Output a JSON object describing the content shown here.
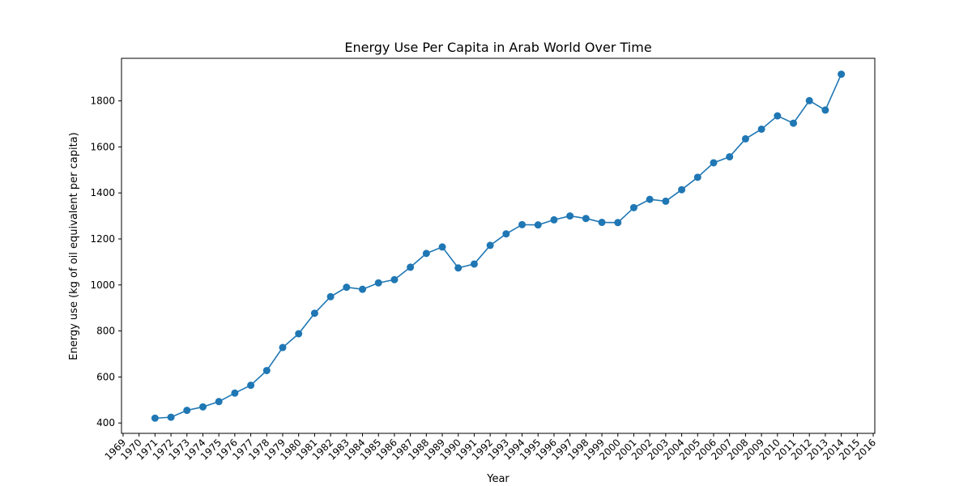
{
  "chart_data": {
    "type": "line",
    "title": "Energy Use Per Capita in Arab World Over Time",
    "xlabel": "Year",
    "ylabel": "Energy use (kg of oil equivalent per capita)",
    "xlim": [
      1968.9,
      2016.1
    ],
    "ylim": [
      355,
      1985
    ],
    "x_ticks": [
      1969,
      1970,
      1971,
      1972,
      1973,
      1974,
      1975,
      1976,
      1977,
      1978,
      1979,
      1980,
      1981,
      1982,
      1983,
      1984,
      1985,
      1986,
      1987,
      1988,
      1989,
      1990,
      1991,
      1992,
      1993,
      1994,
      1995,
      1996,
      1997,
      1998,
      1999,
      2000,
      2001,
      2002,
      2003,
      2004,
      2005,
      2006,
      2007,
      2008,
      2009,
      2010,
      2011,
      2012,
      2013,
      2014,
      2015,
      2016
    ],
    "y_ticks": [
      400,
      600,
      800,
      1000,
      1200,
      1400,
      1600,
      1800
    ],
    "grid": false,
    "color": "#1f77b4",
    "series": [
      {
        "x": [
          1971,
          1972,
          1973,
          1974,
          1975,
          1976,
          1977,
          1978,
          1979,
          1980,
          1981,
          1982,
          1983,
          1984,
          1985,
          1986,
          1987,
          1988,
          1989,
          1990,
          1991,
          1992,
          1993,
          1994,
          1995,
          1996,
          1997,
          1998,
          1999,
          2000,
          2001,
          2002,
          2003,
          2004,
          2005,
          2006,
          2007,
          2008,
          2009,
          2010,
          2011,
          2012,
          2013,
          2014
        ],
        "values": [
          421,
          425,
          455,
          470,
          493,
          530,
          564,
          628,
          728,
          788,
          877,
          949,
          990,
          981,
          1009,
          1023,
          1077,
          1137,
          1165,
          1074,
          1091,
          1172,
          1222,
          1262,
          1261,
          1283,
          1300,
          1289,
          1272,
          1271,
          1336,
          1372,
          1364,
          1414,
          1468,
          1531,
          1557,
          1635,
          1677,
          1735,
          1703,
          1801,
          1760,
          1916
        ]
      }
    ]
  }
}
